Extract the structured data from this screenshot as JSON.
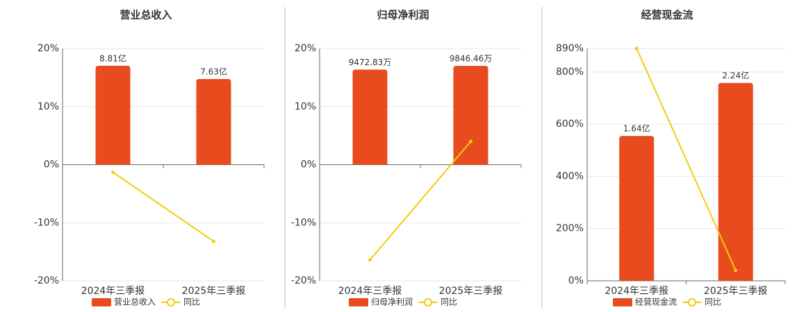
{
  "chart_data": [
    {
      "type": "bar",
      "title": "营业总收入",
      "categories": [
        "2024年三季报",
        "2025年三季报"
      ],
      "series": [
        {
          "name": "营业总收入",
          "color": "#e84c1e",
          "axis": "y2",
          "values": [
            8.81,
            7.63
          ],
          "value_labels": [
            "8.81亿",
            "7.63亿"
          ]
        },
        {
          "name": "同比",
          "type": "line",
          "color": "#f2cc0c",
          "values": [
            -1.3,
            -13.2
          ]
        }
      ],
      "ylim": [
        -20,
        20
      ],
      "yticks": [
        {
          "value": -20,
          "label": "-20%"
        },
        {
          "value": -10,
          "label": "-10%"
        },
        {
          "value": 0,
          "label": "0%"
        },
        {
          "value": 10,
          "label": "10%"
        },
        {
          "value": 20,
          "label": "20%"
        }
      ],
      "y2lim": [
        -10.35,
        10.35
      ],
      "grid": true
    },
    {
      "type": "bar",
      "title": "归母净利润",
      "categories": [
        "2024年三季报",
        "2025年三季报"
      ],
      "series": [
        {
          "name": "归母净利润",
          "color": "#e84c1e",
          "axis": "y2",
          "values": [
            9472.83,
            9846.46
          ],
          "value_labels": [
            "9472.83万",
            "9846.46万"
          ]
        },
        {
          "name": "同比",
          "type": "line",
          "color": "#f2cc0c",
          "values": [
            -16.4,
            4.0
          ]
        }
      ],
      "ylim": [
        -20,
        20
      ],
      "yticks": [
        {
          "value": -20,
          "label": "-20%"
        },
        {
          "value": -10,
          "label": "-10%"
        },
        {
          "value": 0,
          "label": "0%"
        },
        {
          "value": 10,
          "label": "10%"
        },
        {
          "value": 20,
          "label": "20%"
        }
      ],
      "y2lim": [
        -11570,
        11570
      ],
      "grid": true
    },
    {
      "type": "bar",
      "title": "经营现金流",
      "categories": [
        "2024年三季报",
        "2025年三季报"
      ],
      "series": [
        {
          "name": "经营现金流",
          "color": "#e84c1e",
          "axis": "y2",
          "values": [
            1.64,
            2.24
          ],
          "value_labels": [
            "1.64亿",
            "2.24亿"
          ]
        },
        {
          "name": "同比",
          "type": "line",
          "color": "#f2cc0c",
          "values": [
            890,
            40
          ]
        }
      ],
      "ylim": [
        0,
        890
      ],
      "yticks": [
        {
          "value": 0,
          "label": "0%"
        },
        {
          "value": 200,
          "label": "200%"
        },
        {
          "value": 400,
          "label": "400%"
        },
        {
          "value": 600,
          "label": "600%"
        },
        {
          "value": 800,
          "label": "800%"
        },
        {
          "value": 890,
          "label": "890%"
        }
      ],
      "y2lim": [
        0,
        2.63
      ],
      "grid": true
    }
  ]
}
